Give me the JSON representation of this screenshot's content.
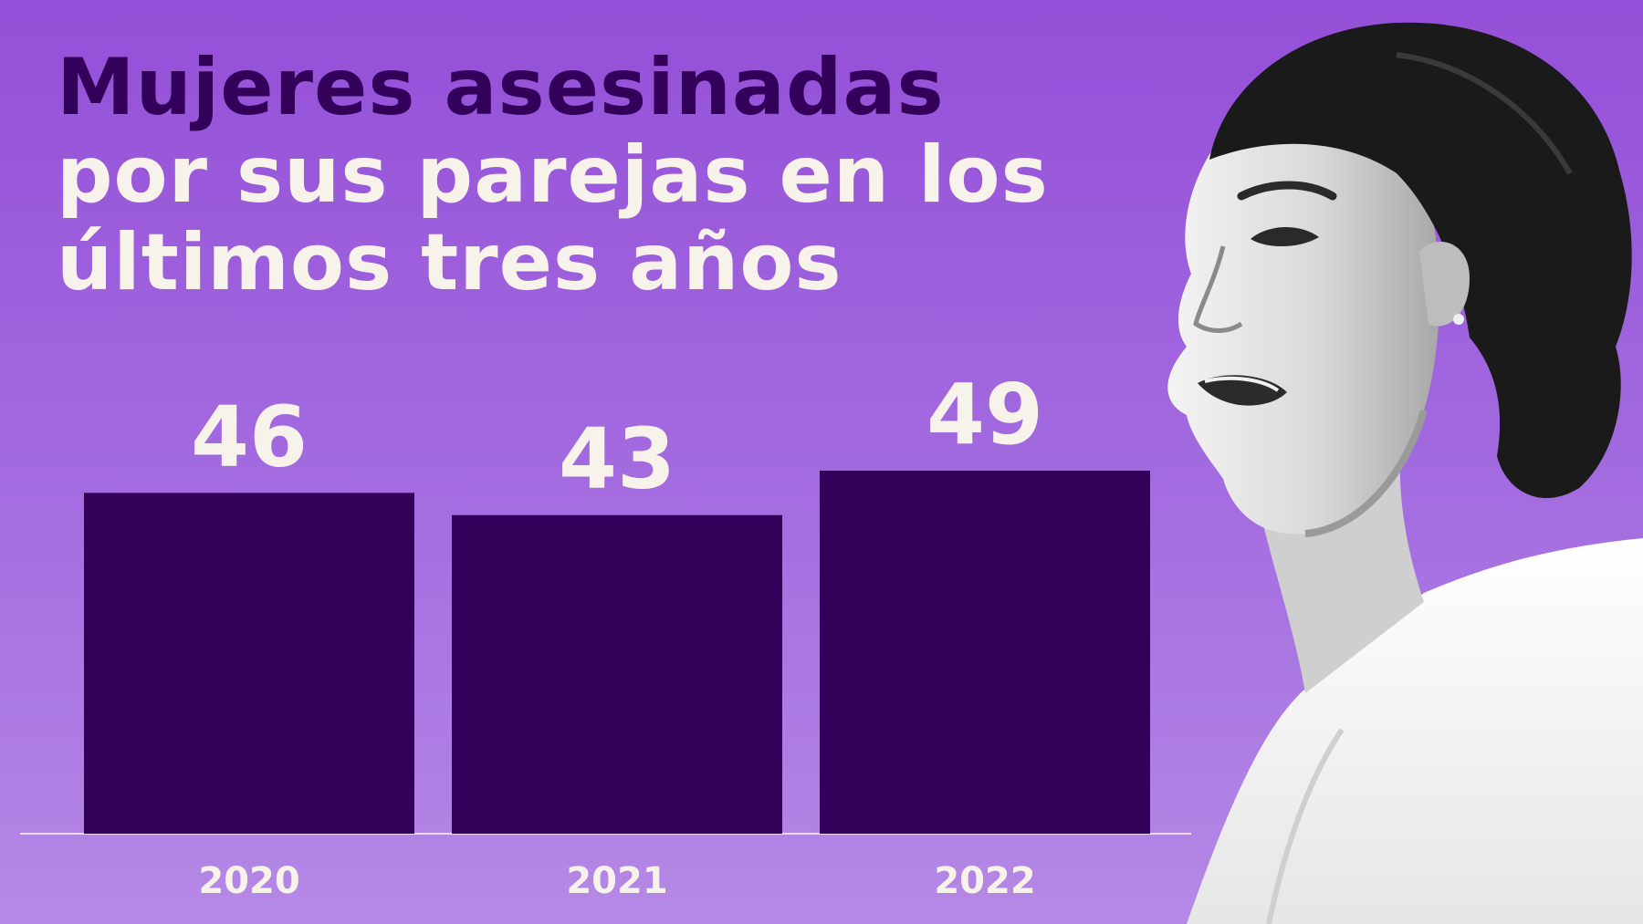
{
  "title_lines": [
    {
      "text": "Mujeres asesinadas",
      "tone": "dark"
    },
    {
      "text": "por sus parejas en los",
      "tone": "light"
    },
    {
      "text": "últimos tres años",
      "tone": "light"
    }
  ],
  "colors": {
    "background_top": "#944fd8",
    "background_bottom": "#b589e6",
    "bar": "#33005a",
    "title_highlight": "#33005a",
    "text_light": "#f8f3ea",
    "axis_line": "#e8dcf6"
  },
  "photo": {
    "icon": "woman-speaking-portrait-icon",
    "style": "black-and-white cutout"
  },
  "chart_data": {
    "type": "bar",
    "title": "Mujeres asesinadas por sus parejas en los últimos tres años",
    "categories": [
      "2020",
      "2021",
      "2022"
    ],
    "values": [
      46,
      43,
      49
    ],
    "data_labels": [
      "46",
      "43",
      "49"
    ],
    "ylim": [
      0,
      49
    ],
    "grid": false,
    "legend": "none",
    "xlabel": "",
    "ylabel": ""
  }
}
